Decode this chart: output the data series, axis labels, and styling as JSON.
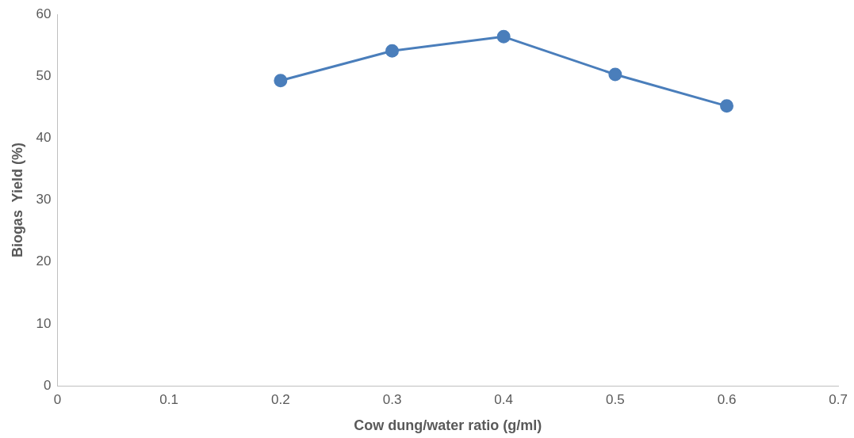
{
  "chart_data": {
    "type": "line",
    "xlabel": "Cow dung/water ratio (g/ml)",
    "ylabel": "Biogas  Yield (%)",
    "x": [
      0.2,
      0.3,
      0.4,
      0.5,
      0.6
    ],
    "series": [
      {
        "color": "#4a7ebb",
        "values": [
          49.3,
          54.1,
          56.4,
          50.3,
          45.2
        ]
      }
    ],
    "xlim": [
      0,
      0.7
    ],
    "xticks": [
      0,
      0.1,
      0.2,
      0.3,
      0.4,
      0.5,
      0.6,
      0.7
    ],
    "ylim": [
      0,
      60
    ],
    "yticks": [
      0,
      10,
      20,
      30,
      40,
      50,
      60
    ],
    "grid": false,
    "legend": false,
    "marker": "circle",
    "line_style": "solid"
  }
}
